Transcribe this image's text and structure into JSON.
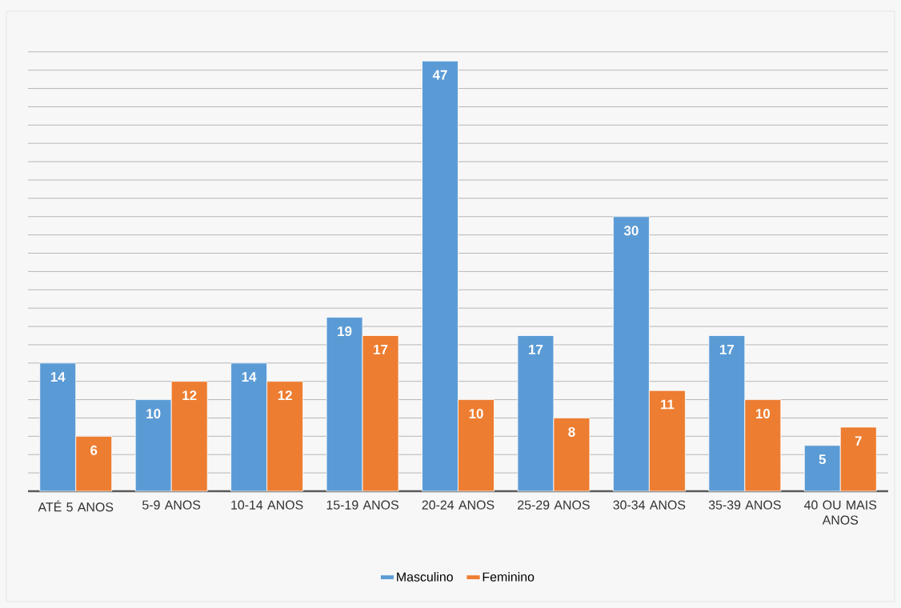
{
  "chart_data": {
    "type": "bar",
    "categories": [
      "ATÉ 5 ANOS",
      "5-9 ANOS",
      "10-14 ANOS",
      "15-19 ANOS",
      "20-24 ANOS",
      "25-29 ANOS",
      "30-34 ANOS",
      "35-39 ANOS",
      "40 OU MAIS ANOS"
    ],
    "series": [
      {
        "name": "Masculino",
        "color": "#5b9bd5",
        "values": [
          14,
          10,
          14,
          19,
          47,
          17,
          30,
          17,
          5
        ]
      },
      {
        "name": "Feminino",
        "color": "#ed7d31",
        "values": [
          6,
          12,
          12,
          17,
          10,
          8,
          11,
          10,
          7
        ]
      }
    ],
    "grid": "y",
    "legend": "bottom",
    "data_labels": true,
    "tick_labels": "x"
  }
}
